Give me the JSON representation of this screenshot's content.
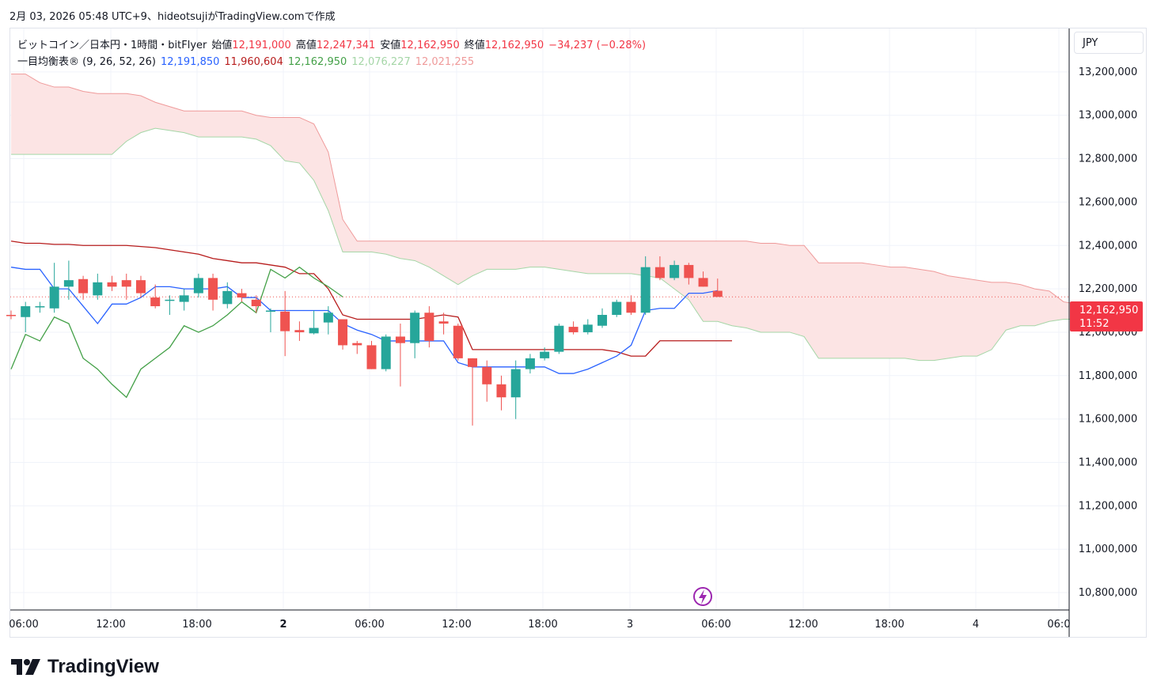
{
  "header": {
    "caption": "2月 03, 2026 05:48 UTC+9、hideotsujiがTradingView.comで作成"
  },
  "legend": {
    "symbol": "ビットコイン／日本円・1時間・bitFlyer",
    "open_label": "始値",
    "open": "12,191,000",
    "high_label": "高値",
    "high": "12,247,341",
    "low_label": "安値",
    "low": "12,162,950",
    "close_label": "終値",
    "close": "12,162,950",
    "change": "−34,237 (−0.28%)",
    "indicator": "一目均衡表® (9, 26, 52, 26)",
    "tenkan": "12,191,850",
    "kijun": "11,960,604",
    "chikou": "12,162,950",
    "span_a": "12,076,227",
    "span_b": "12,021,255"
  },
  "currency": "JPY",
  "last_price": {
    "value": "12,162,950",
    "countdown": "11:52"
  },
  "logo_text": "TradingView",
  "colors": {
    "up": "#26a69a",
    "down": "#ef5350",
    "tenkan": "#2962ff",
    "kijun": "#b71c1c",
    "chikou": "#43a047",
    "span_a": "#a5d6a7",
    "span_b": "#ef9a9a",
    "cloud": "#fce4e4",
    "badge": "#f23645"
  },
  "chart_data": {
    "type": "candlestick",
    "x_ticks": [
      "06:00",
      "12:00",
      "18:00",
      "2",
      "06:00",
      "12:00",
      "18:00",
      "3",
      "06:00",
      "12:00",
      "18:00",
      "4",
      "06:0"
    ],
    "y_ticks": [
      "13,200,000",
      "13,000,000",
      "12,800,000",
      "12,600,000",
      "12,400,000",
      "12,200,000",
      "12,000,000",
      "11,800,000",
      "11,600,000",
      "11,400,000",
      "11,200,000",
      "11,000,000",
      "10,800,000"
    ],
    "ylim": [
      10720000,
      13400000
    ],
    "candles": [
      {
        "o": 12080000,
        "h": 12100000,
        "l": 12060000,
        "c": 12075000
      },
      {
        "o": 12070000,
        "h": 12140000,
        "l": 12000000,
        "c": 12120000
      },
      {
        "o": 12115000,
        "h": 12140000,
        "l": 12090000,
        "c": 12120000
      },
      {
        "o": 12110000,
        "h": 12320000,
        "l": 12090000,
        "c": 12210000
      },
      {
        "o": 12210000,
        "h": 12330000,
        "l": 12150000,
        "c": 12240000
      },
      {
        "o": 12245000,
        "h": 12260000,
        "l": 12150000,
        "c": 12180000
      },
      {
        "o": 12170000,
        "h": 12270000,
        "l": 12150000,
        "c": 12230000
      },
      {
        "o": 12230000,
        "h": 12260000,
        "l": 12190000,
        "c": 12210000
      },
      {
        "o": 12240000,
        "h": 12270000,
        "l": 12150000,
        "c": 12210000
      },
      {
        "o": 12240000,
        "h": 12260000,
        "l": 12160000,
        "c": 12180000
      },
      {
        "o": 12160000,
        "h": 12220000,
        "l": 12110000,
        "c": 12120000
      },
      {
        "o": 12150000,
        "h": 12170000,
        "l": 12080000,
        "c": 12150000
      },
      {
        "o": 12140000,
        "h": 12200000,
        "l": 12100000,
        "c": 12170000
      },
      {
        "o": 12180000,
        "h": 12270000,
        "l": 12160000,
        "c": 12250000
      },
      {
        "o": 12250000,
        "h": 12270000,
        "l": 12100000,
        "c": 12150000
      },
      {
        "o": 12130000,
        "h": 12230000,
        "l": 12110000,
        "c": 12190000
      },
      {
        "o": 12180000,
        "h": 12200000,
        "l": 12140000,
        "c": 12160000
      },
      {
        "o": 12150000,
        "h": 12170000,
        "l": 12090000,
        "c": 12120000
      },
      {
        "o": 12100000,
        "h": 12110000,
        "l": 12000000,
        "c": 12100000
      },
      {
        "o": 12095000,
        "h": 12190000,
        "l": 11890000,
        "c": 12005000
      },
      {
        "o": 12010000,
        "h": 12050000,
        "l": 11960000,
        "c": 12000000
      },
      {
        "o": 11995000,
        "h": 12100000,
        "l": 11990000,
        "c": 12020000
      },
      {
        "o": 12045000,
        "h": 12120000,
        "l": 11990000,
        "c": 12090000
      },
      {
        "o": 12060000,
        "h": 12060000,
        "l": 11920000,
        "c": 11940000
      },
      {
        "o": 11950000,
        "h": 11960000,
        "l": 11900000,
        "c": 11940000
      },
      {
        "o": 11940000,
        "h": 11960000,
        "l": 11830000,
        "c": 11830000
      },
      {
        "o": 11830000,
        "h": 11990000,
        "l": 11820000,
        "c": 11980000
      },
      {
        "o": 11980000,
        "h": 12040000,
        "l": 11750000,
        "c": 11950000
      },
      {
        "o": 11950000,
        "h": 12100000,
        "l": 11880000,
        "c": 12090000
      },
      {
        "o": 12090000,
        "h": 12120000,
        "l": 11930000,
        "c": 11960000
      },
      {
        "o": 12050000,
        "h": 12090000,
        "l": 11990000,
        "c": 12040000
      },
      {
        "o": 12030000,
        "h": 12040000,
        "l": 11870000,
        "c": 11880000
      },
      {
        "o": 11880000,
        "h": 11880000,
        "l": 11570000,
        "c": 11840000
      },
      {
        "o": 11840000,
        "h": 11870000,
        "l": 11680000,
        "c": 11760000
      },
      {
        "o": 11760000,
        "h": 11800000,
        "l": 11640000,
        "c": 11700000
      },
      {
        "o": 11700000,
        "h": 11870000,
        "l": 11600000,
        "c": 11830000
      },
      {
        "o": 11830000,
        "h": 11900000,
        "l": 11810000,
        "c": 11880000
      },
      {
        "o": 11880000,
        "h": 11930000,
        "l": 11870000,
        "c": 11910000
      },
      {
        "o": 11910000,
        "h": 12040000,
        "l": 11900000,
        "c": 12030000
      },
      {
        "o": 12025000,
        "h": 12050000,
        "l": 11990000,
        "c": 12000000
      },
      {
        "o": 12000000,
        "h": 12060000,
        "l": 11990000,
        "c": 12035000
      },
      {
        "o": 12030000,
        "h": 12110000,
        "l": 12020000,
        "c": 12080000
      },
      {
        "o": 12080000,
        "h": 12150000,
        "l": 12070000,
        "c": 12140000
      },
      {
        "o": 12140000,
        "h": 12170000,
        "l": 12080000,
        "c": 12090000
      },
      {
        "o": 12090000,
        "h": 12350000,
        "l": 12080000,
        "c": 12300000
      },
      {
        "o": 12300000,
        "h": 12350000,
        "l": 12240000,
        "c": 12250000
      },
      {
        "o": 12250000,
        "h": 12330000,
        "l": 12240000,
        "c": 12310000
      },
      {
        "o": 12310000,
        "h": 12320000,
        "l": 12220000,
        "c": 12250000
      },
      {
        "o": 12250000,
        "h": 12280000,
        "l": 12210000,
        "c": 12210000
      },
      {
        "o": 12191000,
        "h": 12247341,
        "l": 12162950,
        "c": 12162950
      }
    ],
    "tenkan": [
      12300000,
      12290000,
      12290000,
      12200000,
      12200000,
      12120000,
      12040000,
      12130000,
      12130000,
      12160000,
      12210000,
      12210000,
      12200000,
      12200000,
      12200000,
      12210000,
      12160000,
      12160000,
      12100000,
      12100000,
      12100000,
      12100000,
      12100000,
      12040000,
      12010000,
      11990000,
      11960000,
      11960000,
      11960000,
      11960000,
      11960000,
      11860000,
      11840000,
      11840000,
      11840000,
      11840000,
      11840000,
      11840000,
      11810000,
      11810000,
      11830000,
      11860000,
      11890000,
      11940000,
      12100000,
      12110000,
      12110000,
      12180000,
      12180000,
      12191850
    ],
    "kijun": [
      12420000,
      12410000,
      12410000,
      12405000,
      12405000,
      12400000,
      12400000,
      12400000,
      12400000,
      12395000,
      12390000,
      12380000,
      12370000,
      12360000,
      12340000,
      12330000,
      12320000,
      12320000,
      12310000,
      12300000,
      12270000,
      12270000,
      12200000,
      12080000,
      12060000,
      12060000,
      12060000,
      12060000,
      12060000,
      12070000,
      12080000,
      12070000,
      11920000,
      11920000,
      11920000,
      11920000,
      11920000,
      11920000,
      11920000,
      11920000,
      11920000,
      11920000,
      11910000,
      11890000,
      11890000,
      11960604,
      11960604,
      11960604,
      11960604,
      11960604,
      11960604
    ],
    "chikou": [
      11830000,
      11990000,
      11960000,
      12070000,
      12040000,
      11880000,
      11830000,
      11760000,
      11700000,
      11830000,
      11880000,
      11930000,
      12030000,
      12000000,
      12030000,
      12080000,
      12140000,
      12090000,
      12290000,
      12250000,
      12300000,
      12250000,
      12210000,
      12162950
    ],
    "cloud_x_offset": 0,
    "span_a": [
      12820000,
      12820000,
      12820000,
      12820000,
      12820000,
      12820000,
      12820000,
      12820000,
      12880000,
      12920000,
      12940000,
      12930000,
      12920000,
      12900000,
      12900000,
      12900000,
      12900000,
      12890000,
      12860000,
      12790000,
      12780000,
      12700000,
      12560000,
      12370000,
      12370000,
      12370000,
      12360000,
      12340000,
      12330000,
      12300000,
      12260000,
      12220000,
      12260000,
      12290000,
      12290000,
      12290000,
      12300000,
      12300000,
      12290000,
      12280000,
      12270000,
      12270000,
      12270000,
      12270000,
      12260000,
      12250000,
      12200000,
      12150000,
      12050000,
      12050000,
      12030000,
      12020000,
      12000000,
      12000000,
      12000000,
      11980000,
      11880000,
      11880000,
      11880000,
      11880000,
      11880000,
      11880000,
      11880000,
      11870000,
      11870000,
      11880000,
      11890000,
      11890000,
      11920000,
      12010000,
      12030000,
      12030000,
      12050000,
      12060000,
      12060000,
      12076227
    ],
    "span_b": [
      13190000,
      13190000,
      13150000,
      13130000,
      13130000,
      13110000,
      13100000,
      13100000,
      13100000,
      13090000,
      13060000,
      13040000,
      13020000,
      13020000,
      13020000,
      13020000,
      13020000,
      13000000,
      12990000,
      12990000,
      12990000,
      12960000,
      12830000,
      12520000,
      12420000,
      12420000,
      12420000,
      12420000,
      12420000,
      12420000,
      12420000,
      12420000,
      12420000,
      12420000,
      12420000,
      12420000,
      12420000,
      12420000,
      12420000,
      12420000,
      12420000,
      12420000,
      12420000,
      12420000,
      12420000,
      12420000,
      12420000,
      12420000,
      12420000,
      12420000,
      12420000,
      12420000,
      12410000,
      12410000,
      12400000,
      12400000,
      12320000,
      12320000,
      12320000,
      12320000,
      12310000,
      12300000,
      12300000,
      12290000,
      12280000,
      12260000,
      12250000,
      12240000,
      12230000,
      12230000,
      12220000,
      12200000,
      12190000,
      12140000,
      12130000,
      12021255
    ]
  }
}
